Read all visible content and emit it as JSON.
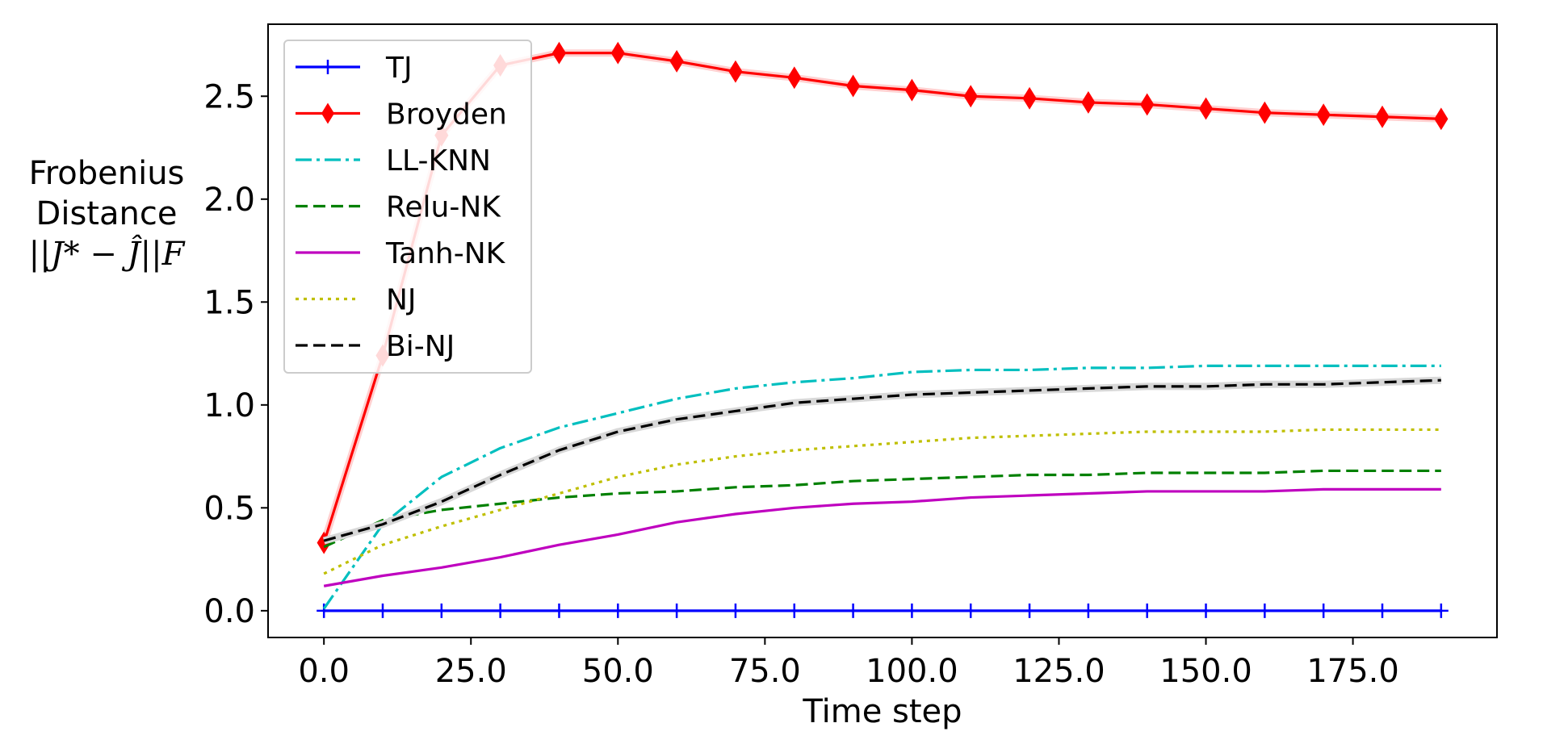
{
  "chart_data": {
    "type": "line",
    "title": "",
    "xlabel": "Time step",
    "ylabel_lines": [
      "Frobenius",
      "Distance",
      "||J* − Ĵ||F"
    ],
    "xlim": [
      -9.5,
      199.5
    ],
    "ylim": [
      -0.13,
      2.85
    ],
    "xticks": [
      0,
      25,
      50,
      75,
      100,
      125,
      150,
      175
    ],
    "xtick_labels": [
      "0.0",
      "25.0",
      "50.0",
      "75.0",
      "100.0",
      "125.0",
      "150.0",
      "175.0"
    ],
    "yticks": [
      0,
      0.5,
      1.0,
      1.5,
      2.0,
      2.5
    ],
    "ytick_labels": [
      "0.0",
      "0.5",
      "1.0",
      "1.5",
      "2.0",
      "2.5"
    ],
    "legend_position": "upper left",
    "grid": false,
    "x": [
      0,
      10,
      20,
      30,
      40,
      50,
      60,
      70,
      80,
      90,
      100,
      110,
      120,
      130,
      140,
      150,
      160,
      170,
      180,
      190
    ],
    "series": [
      {
        "name": "TJ",
        "color": "#0000ff",
        "style": "solid",
        "marker": "plus",
        "values": [
          0,
          0,
          0,
          0,
          0,
          0,
          0,
          0,
          0,
          0,
          0,
          0,
          0,
          0,
          0,
          0,
          0,
          0,
          0,
          0
        ]
      },
      {
        "name": "Broyden",
        "color": "#ff0000",
        "style": "solid",
        "marker": "diamond",
        "values": [
          0.33,
          1.24,
          2.31,
          2.65,
          2.71,
          2.71,
          2.67,
          2.62,
          2.59,
          2.55,
          2.53,
          2.5,
          2.49,
          2.47,
          2.46,
          2.44,
          2.42,
          2.41,
          2.4,
          2.39
        ]
      },
      {
        "name": "LL-KNN",
        "color": "#00bfbf",
        "style": "dashdot",
        "marker": "none",
        "values": [
          0.01,
          0.42,
          0.65,
          0.79,
          0.89,
          0.96,
          1.03,
          1.08,
          1.11,
          1.13,
          1.16,
          1.17,
          1.17,
          1.18,
          1.18,
          1.19,
          1.19,
          1.19,
          1.19,
          1.19
        ]
      },
      {
        "name": "Relu-NK",
        "color": "#008000",
        "style": "dashed",
        "marker": "none",
        "values": [
          0.31,
          0.44,
          0.49,
          0.52,
          0.55,
          0.57,
          0.58,
          0.6,
          0.61,
          0.63,
          0.64,
          0.65,
          0.66,
          0.66,
          0.67,
          0.67,
          0.67,
          0.68,
          0.68,
          0.68
        ]
      },
      {
        "name": "Tanh-NK",
        "color": "#bf00bf",
        "style": "solid",
        "marker": "none",
        "values": [
          0.12,
          0.17,
          0.21,
          0.26,
          0.32,
          0.37,
          0.43,
          0.47,
          0.5,
          0.52,
          0.53,
          0.55,
          0.56,
          0.57,
          0.58,
          0.58,
          0.58,
          0.59,
          0.59,
          0.59
        ]
      },
      {
        "name": "NJ",
        "color": "#bfbf00",
        "style": "dotted",
        "marker": "none",
        "values": [
          0.18,
          0.32,
          0.41,
          0.49,
          0.57,
          0.65,
          0.71,
          0.75,
          0.78,
          0.8,
          0.82,
          0.84,
          0.85,
          0.86,
          0.87,
          0.87,
          0.87,
          0.88,
          0.88,
          0.88
        ]
      },
      {
        "name": "Bi-NJ",
        "color": "#000000",
        "style": "dashed",
        "marker": "none",
        "values": [
          0.34,
          0.42,
          0.53,
          0.66,
          0.78,
          0.87,
          0.93,
          0.97,
          1.01,
          1.03,
          1.05,
          1.06,
          1.07,
          1.08,
          1.09,
          1.09,
          1.1,
          1.1,
          1.11,
          1.12
        ]
      }
    ]
  }
}
